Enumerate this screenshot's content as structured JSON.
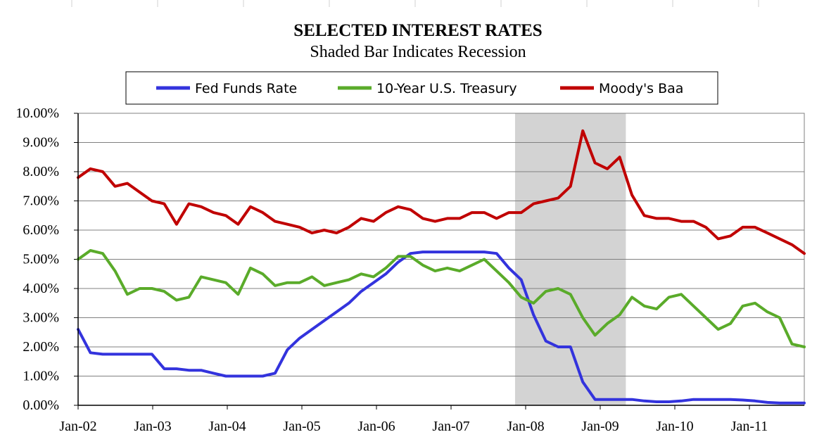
{
  "chart_data": {
    "type": "line",
    "title": "SELECTED INTEREST RATES",
    "subtitle": "Shaded Bar Indicates Recession",
    "x_tick_labels": [
      "Jan-02",
      "Jan-03",
      "Jan-04",
      "Jan-05",
      "Jan-06",
      "Jan-07",
      "Jan-08",
      "Jan-09",
      "Jan-10",
      "Jan-11"
    ],
    "y_tick_labels": [
      "0.00%",
      "1.00%",
      "2.00%",
      "3.00%",
      "4.00%",
      "5.00%",
      "6.00%",
      "7.00%",
      "8.00%",
      "9.00%",
      "10.00%"
    ],
    "xlim": [
      "2002-01",
      "2011-11"
    ],
    "ylim": [
      0,
      10
    ],
    "grid": true,
    "legend_position": "top",
    "recession_shading": {
      "start": "2007-12",
      "end": "2009-06",
      "color": "#d3d3d3"
    },
    "x": [
      "2002-01",
      "2002-03",
      "2002-05",
      "2002-07",
      "2002-09",
      "2002-11",
      "2003-01",
      "2003-03",
      "2003-05",
      "2003-07",
      "2003-09",
      "2003-11",
      "2004-01",
      "2004-03",
      "2004-05",
      "2004-07",
      "2004-09",
      "2004-11",
      "2005-01",
      "2005-03",
      "2005-05",
      "2005-07",
      "2005-09",
      "2005-11",
      "2006-01",
      "2006-03",
      "2006-05",
      "2006-07",
      "2006-09",
      "2006-11",
      "2007-01",
      "2007-03",
      "2007-05",
      "2007-07",
      "2007-09",
      "2007-11",
      "2008-01",
      "2008-03",
      "2008-05",
      "2008-07",
      "2008-09",
      "2008-11",
      "2009-01",
      "2009-03",
      "2009-05",
      "2009-07",
      "2009-09",
      "2009-11",
      "2010-01",
      "2010-03",
      "2010-05",
      "2010-07",
      "2010-09",
      "2010-11",
      "2011-01",
      "2011-03",
      "2011-05",
      "2011-07",
      "2011-09",
      "2011-11"
    ],
    "series": [
      {
        "name": "Fed Funds Rate",
        "color": "#3333dd",
        "values": [
          2.6,
          1.8,
          1.75,
          1.75,
          1.75,
          1.75,
          1.75,
          1.25,
          1.25,
          1.2,
          1.2,
          1.1,
          1.0,
          1.0,
          1.0,
          1.0,
          1.1,
          1.9,
          2.3,
          2.6,
          2.9,
          3.2,
          3.5,
          3.9,
          4.2,
          4.5,
          4.9,
          5.2,
          5.25,
          5.25,
          5.25,
          5.25,
          5.25,
          5.25,
          5.2,
          4.7,
          4.3,
          3.1,
          2.2,
          2.0,
          2.0,
          0.8,
          0.2,
          0.2,
          0.2,
          0.2,
          0.15,
          0.12,
          0.12,
          0.15,
          0.2,
          0.2,
          0.2,
          0.2,
          0.18,
          0.15,
          0.1,
          0.08,
          0.08,
          0.08
        ]
      },
      {
        "name": "10-Year U.S. Treasury",
        "color": "#5aab2a",
        "values": [
          5.0,
          5.3,
          5.2,
          4.6,
          3.8,
          4.0,
          4.0,
          3.9,
          3.6,
          3.7,
          4.4,
          4.3,
          4.2,
          3.8,
          4.7,
          4.5,
          4.1,
          4.2,
          4.2,
          4.4,
          4.1,
          4.2,
          4.3,
          4.5,
          4.4,
          4.7,
          5.1,
          5.1,
          4.8,
          4.6,
          4.7,
          4.6,
          4.8,
          5.0,
          4.6,
          4.2,
          3.7,
          3.5,
          3.9,
          4.0,
          3.8,
          3.0,
          2.4,
          2.8,
          3.1,
          3.7,
          3.4,
          3.3,
          3.7,
          3.8,
          3.4,
          3.0,
          2.6,
          2.8,
          3.4,
          3.5,
          3.2,
          3.0,
          2.1,
          2.0
        ]
      },
      {
        "name": "Moody's Baa",
        "color": "#c00000",
        "values": [
          7.8,
          8.1,
          8.0,
          7.5,
          7.6,
          7.3,
          7.0,
          6.9,
          6.2,
          6.9,
          6.8,
          6.6,
          6.5,
          6.2,
          6.8,
          6.6,
          6.3,
          6.2,
          6.1,
          5.9,
          6.0,
          5.9,
          6.1,
          6.4,
          6.3,
          6.6,
          6.8,
          6.7,
          6.4,
          6.3,
          6.4,
          6.4,
          6.6,
          6.6,
          6.4,
          6.6,
          6.6,
          6.9,
          7.0,
          7.1,
          7.5,
          9.4,
          8.3,
          8.1,
          8.5,
          7.2,
          6.5,
          6.4,
          6.4,
          6.3,
          6.3,
          6.1,
          5.7,
          5.8,
          6.1,
          6.1,
          5.9,
          5.7,
          5.5,
          5.2
        ]
      }
    ]
  }
}
